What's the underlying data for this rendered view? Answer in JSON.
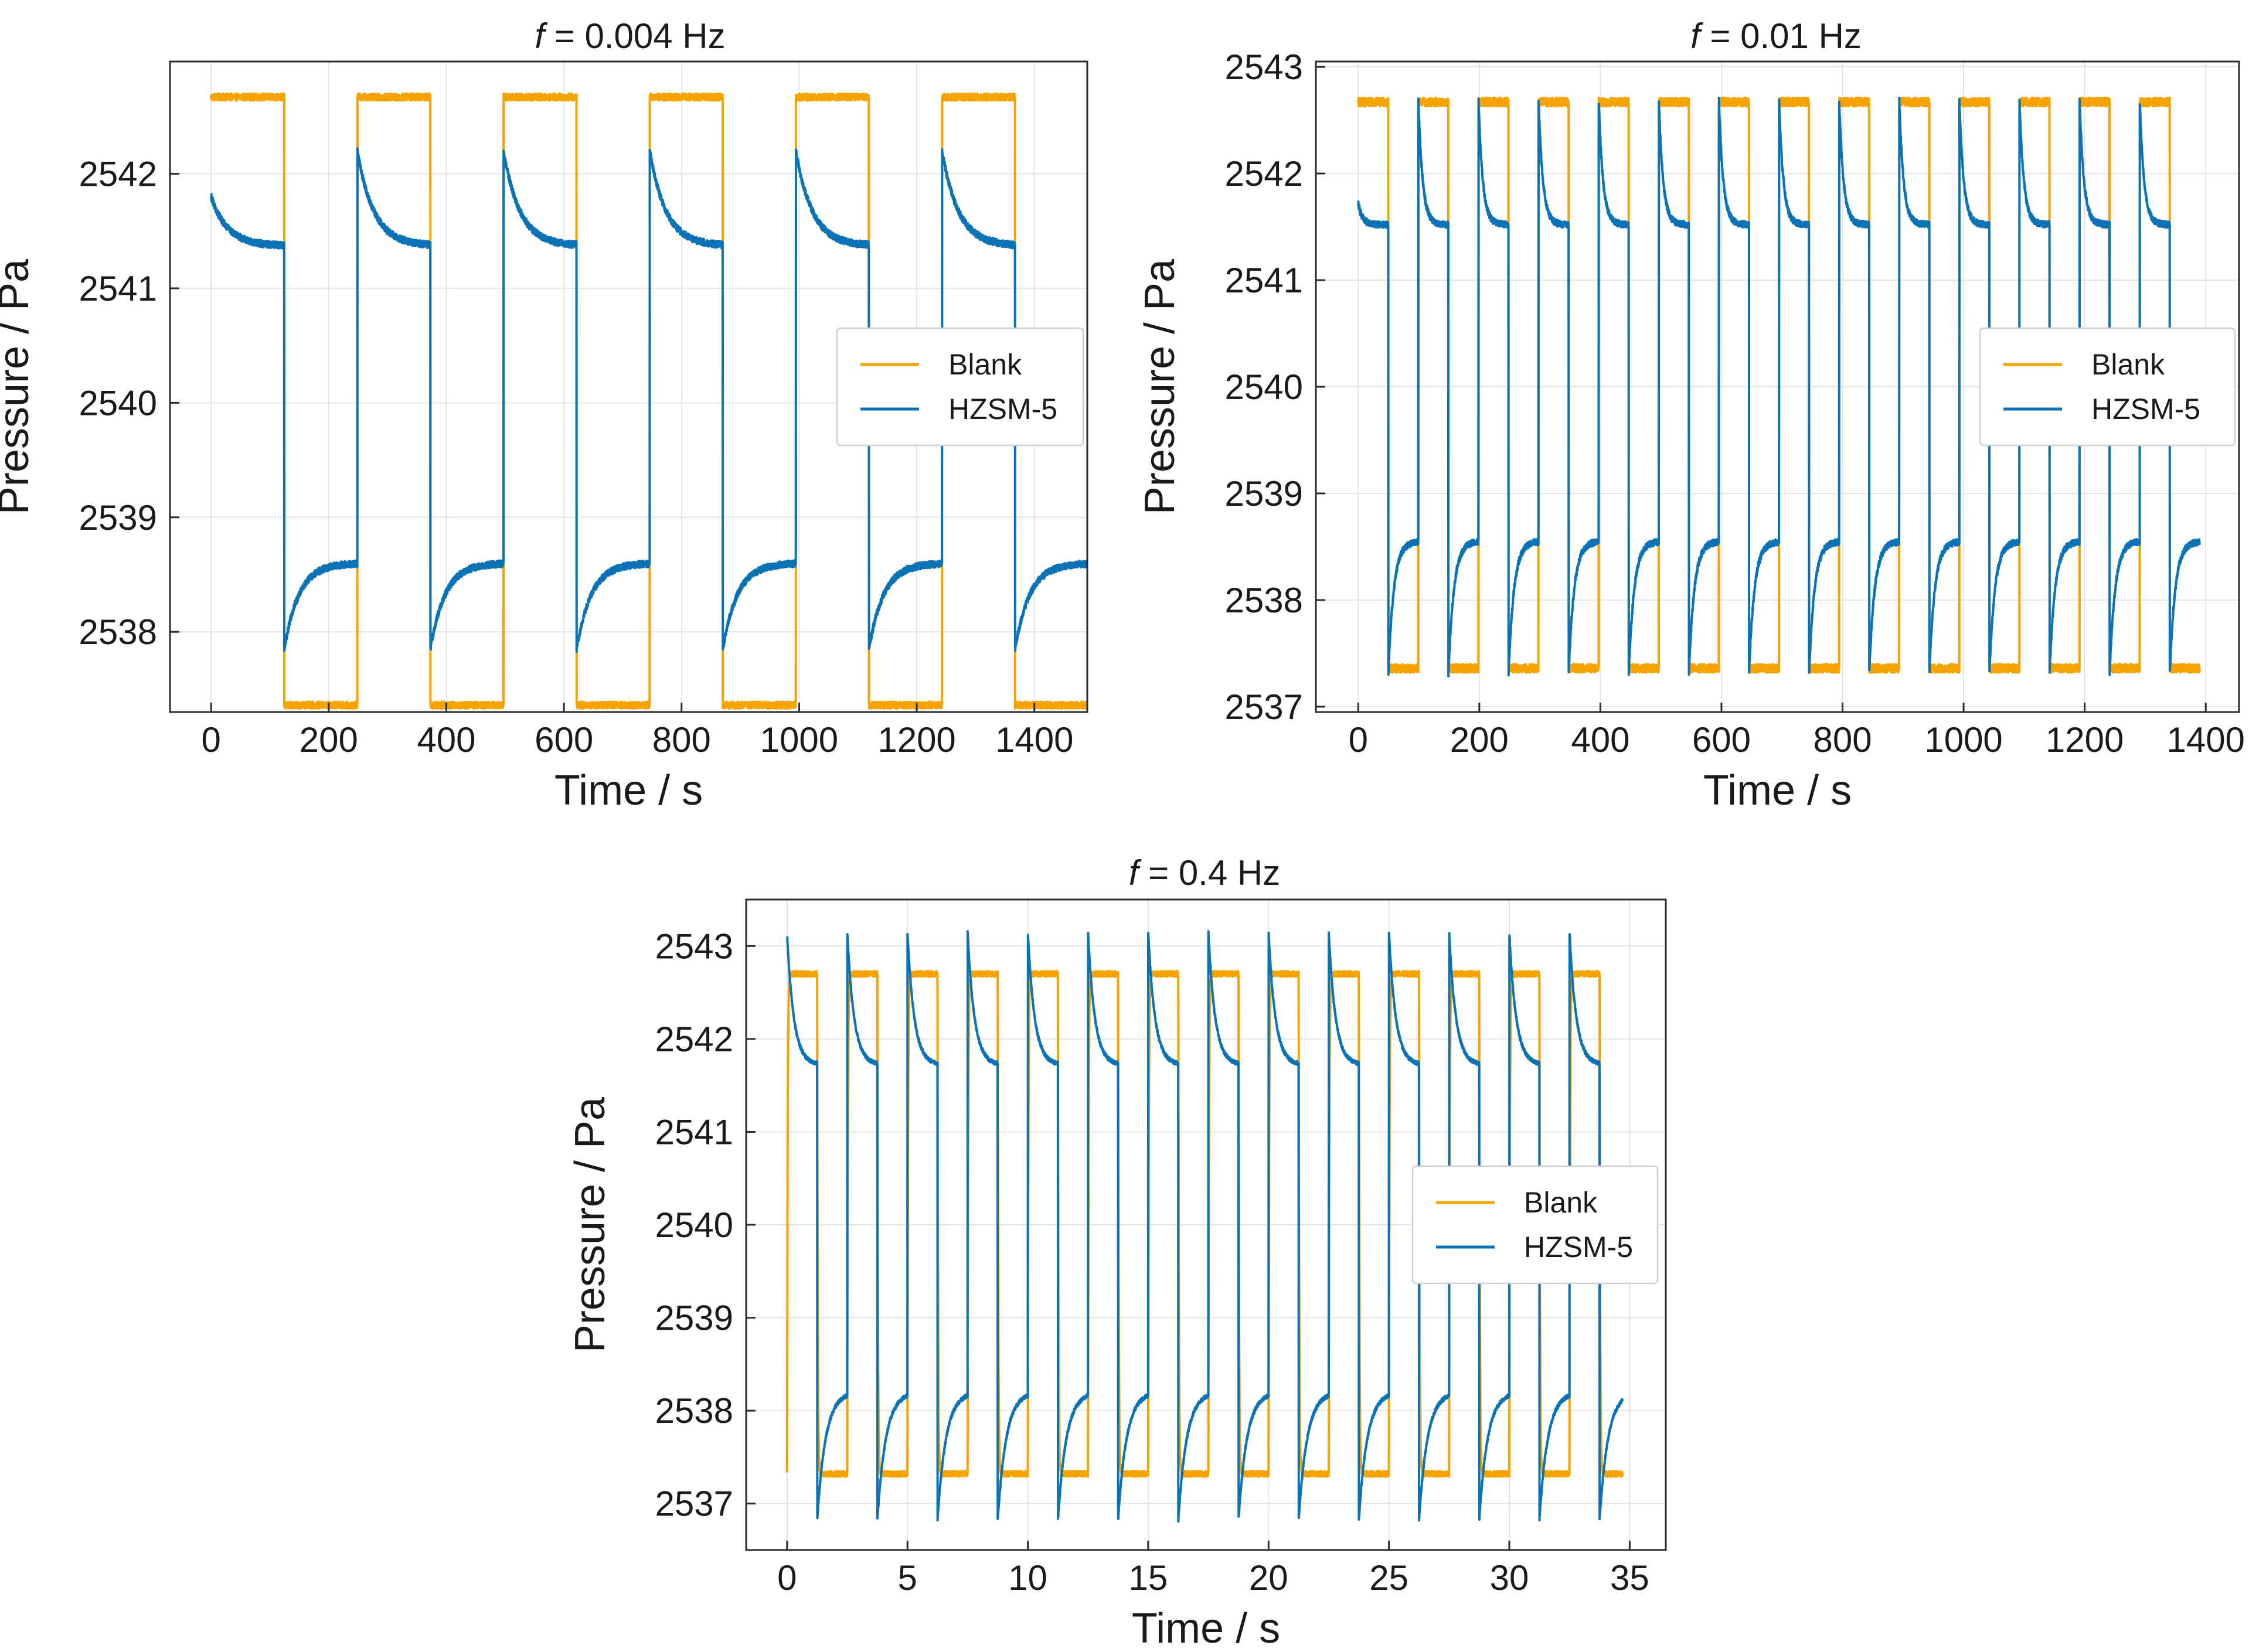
{
  "figure": {
    "title": ""
  },
  "chart_data": [
    {
      "id": "panel-1",
      "type": "line",
      "title_italic": "f",
      "title_rest": " = 0.004 Hz",
      "xlabel": "Time / s",
      "ylabel": "Pressure / Pa",
      "xlim": [
        -70,
        1490
      ],
      "ylim": [
        2537.3,
        2542.98
      ],
      "xticks": [
        0,
        200,
        400,
        600,
        800,
        1000,
        1200,
        1400
      ],
      "yticks": [
        2538,
        2539,
        2540,
        2541,
        2542
      ],
      "grid": true,
      "legend_position": "center-right",
      "cycle": {
        "t0": 0,
        "t_end": 1490,
        "period": 248.6,
        "n_cycles": 6,
        "x_ticks_unit": "s",
        "blank_high": 2542.67,
        "blank_low": 2537.36,
        "blank_noise": 0.03,
        "blank_rise_tau": 0,
        "hz_high_peak": 2542.2,
        "hz_high_end": 2541.37,
        "hz_high_tau": 28,
        "hz_low_peak": 2537.85,
        "hz_low_end": 2538.6,
        "hz_low_tau": 25,
        "hz_start": 2541.8,
        "noise": 0.03
      },
      "series": [
        {
          "name": "Blank",
          "color": "#F5A300"
        },
        {
          "name": "HZSM-5",
          "color": "#0A72B5"
        }
      ]
    },
    {
      "id": "panel-2",
      "type": "line",
      "title_italic": "f",
      "title_rest": " = 0.01 Hz",
      "xlabel": "Time / s",
      "ylabel": "Pressure / Pa",
      "xlim": [
        -70,
        1455
      ],
      "ylim": [
        2536.95,
        2543.05
      ],
      "xticks": [
        0,
        200,
        400,
        600,
        800,
        1000,
        1200,
        1400
      ],
      "yticks": [
        2537,
        2538,
        2539,
        2540,
        2541,
        2542,
        2543
      ],
      "grid": true,
      "legend_position": "center-right",
      "cycle": {
        "t0": 0,
        "t_end": 1390,
        "period": 99.3,
        "n_cycles": 14,
        "x_ticks_unit": "s",
        "blank_high": 2542.67,
        "blank_low": 2537.36,
        "blank_noise": 0.04,
        "blank_rise_tau": 0,
        "hz_high_peak": 2542.7,
        "hz_high_end": 2541.52,
        "hz_high_tau": 7,
        "hz_low_peak": 2537.3,
        "hz_low_end": 2538.55,
        "hz_low_tau": 9,
        "hz_start": 2541.72,
        "noise": 0.03
      },
      "series": [
        {
          "name": "Blank",
          "color": "#F5A300"
        },
        {
          "name": "HZSM-5",
          "color": "#0A72B5"
        }
      ]
    },
    {
      "id": "panel-3",
      "type": "line",
      "title_italic": "f",
      "title_rest": " = 0.4 Hz",
      "xlabel": "Time / s",
      "ylabel": "Pressure / Pa",
      "xlim": [
        -1.7,
        36.5
      ],
      "ylim": [
        2536.5,
        2543.5
      ],
      "xticks": [
        0,
        5,
        10,
        15,
        20,
        25,
        30,
        35
      ],
      "yticks": [
        2537,
        2538,
        2539,
        2540,
        2541,
        2542,
        2543
      ],
      "grid": true,
      "legend_position": "center-right",
      "cycle": {
        "t0": 0,
        "t_end": 34.7,
        "period": 2.5,
        "n_cycles": 14,
        "x_ticks_unit": "s",
        "blank_high": 2542.7,
        "blank_low": 2537.32,
        "blank_noise": 0.03,
        "blank_rise_tau": 0.07,
        "hz_high_peak": 2543.15,
        "hz_high_end": 2541.72,
        "hz_high_tau": 0.28,
        "hz_low_peak": 2536.82,
        "hz_low_end": 2538.2,
        "hz_low_tau": 0.35,
        "hz_start": 2543.12,
        "noise": 0.02
      },
      "series": [
        {
          "name": "Blank",
          "color": "#F5A300"
        },
        {
          "name": "HZSM-5",
          "color": "#0A72B5"
        }
      ]
    }
  ]
}
